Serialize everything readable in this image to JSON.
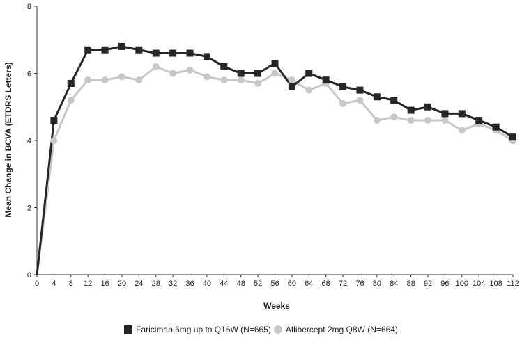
{
  "chart_data": {
    "type": "line",
    "title": "",
    "xlabel": "Weeks",
    "ylabel": "Mean Change in BCVA (ETDRS Letters)",
    "xlim": [
      0,
      112
    ],
    "ylim": [
      0,
      8
    ],
    "x": [
      0,
      4,
      8,
      12,
      16,
      20,
      24,
      28,
      32,
      36,
      40,
      44,
      48,
      52,
      56,
      60,
      64,
      68,
      72,
      76,
      80,
      84,
      88,
      92,
      96,
      100,
      104,
      108,
      112
    ],
    "x_ticks": [
      "0",
      "4",
      "8",
      "12",
      "16",
      "20",
      "24",
      "28",
      "32",
      "36",
      "40",
      "44",
      "48",
      "52",
      "56",
      "60",
      "64",
      "68",
      "72",
      "76",
      "80",
      "84",
      "88",
      "92",
      "96",
      "100",
      "104",
      "108",
      "112"
    ],
    "y_ticks": [
      "0",
      "2",
      "4",
      "6",
      "8"
    ],
    "grid": false,
    "legend_position": "bottom",
    "series": [
      {
        "name": "Faricimab 6mg up to Q16W (N=665)",
        "color": "#262626",
        "marker": "square",
        "values": [
          0,
          4.6,
          5.7,
          6.7,
          6.7,
          6.8,
          6.7,
          6.6,
          6.6,
          6.6,
          6.5,
          6.2,
          6.0,
          6.0,
          6.3,
          5.6,
          6.0,
          5.8,
          5.6,
          5.5,
          5.3,
          5.2,
          4.9,
          5.0,
          4.8,
          4.8,
          4.6,
          4.4,
          4.1
        ]
      },
      {
        "name": "Aflibercept 2mg Q8W (N=664)",
        "color": "#c8c8c8",
        "marker": "circle",
        "values": [
          0,
          4.0,
          5.2,
          5.8,
          5.8,
          5.9,
          5.8,
          6.2,
          6.0,
          6.1,
          5.9,
          5.8,
          5.8,
          5.7,
          6.0,
          5.8,
          5.5,
          5.7,
          5.1,
          5.2,
          4.6,
          4.7,
          4.6,
          4.6,
          4.6,
          4.3,
          4.5,
          4.3,
          4.0
        ]
      }
    ]
  }
}
